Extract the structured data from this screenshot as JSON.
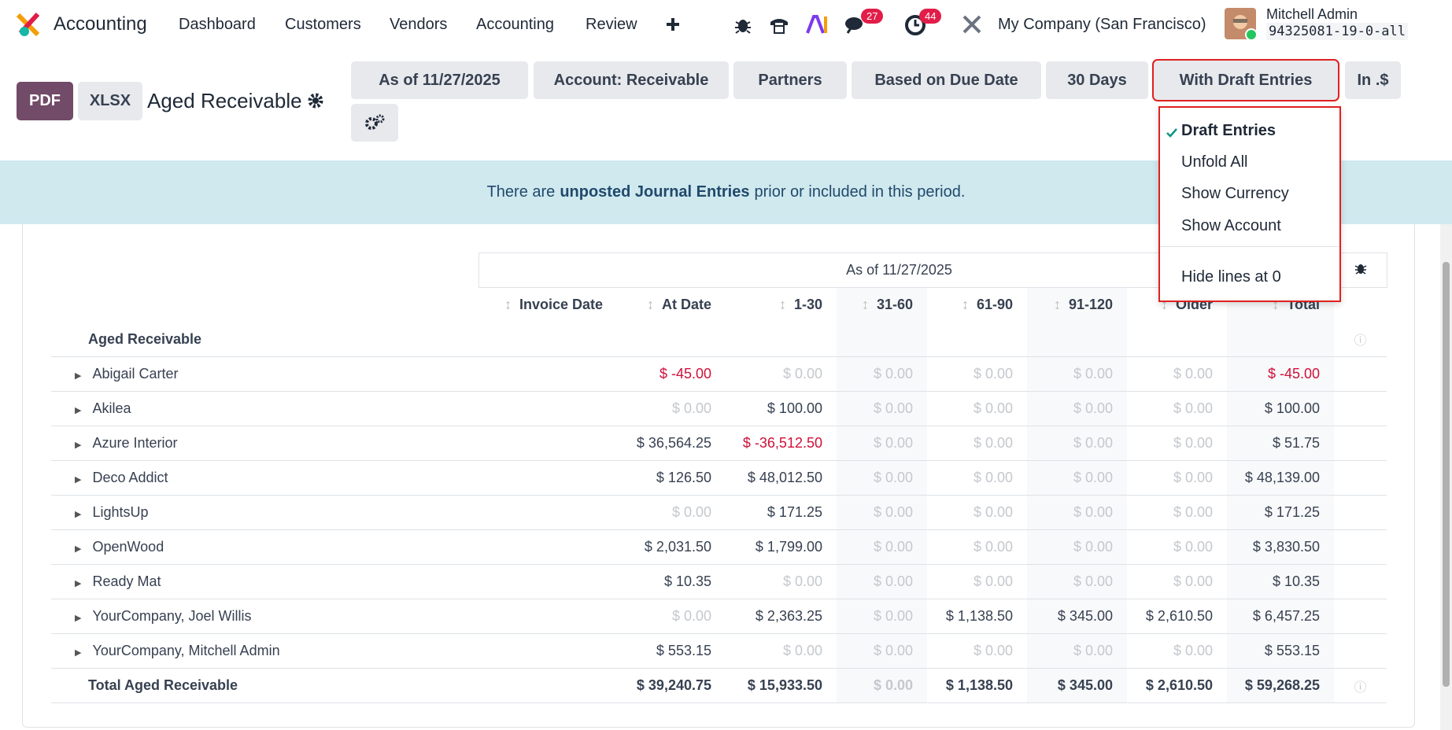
{
  "navbar": {
    "app": "Accounting",
    "menu": [
      "Dashboard",
      "Customers",
      "Vendors",
      "Accounting",
      "Review"
    ],
    "badges": [
      "27",
      "44"
    ],
    "company": "My Company (San Francisco)",
    "user": "Mitchell Admin",
    "db": "94325081-19-0-all"
  },
  "control_panel": {
    "buttons": [
      "PDF",
      "XLSX"
    ],
    "title": "Aged Receivable",
    "filters": [
      "As of 11/27/2025",
      "Account: Receivable",
      "Partners",
      "Based on Due Date",
      "30 Days",
      "With Draft Entries",
      "In .$"
    ]
  },
  "dropdown": {
    "items": [
      "Draft Entries",
      "Unfold All",
      "Show Currency",
      "Show Account"
    ],
    "extra": "Hide lines at 0"
  },
  "alert": {
    "before": "There are",
    "bold": "unposted Journal Entries",
    "after": "prior or included in this period."
  },
  "table": {
    "period": "As of 11/27/2025",
    "columns": [
      "Invoice Date",
      "At Date",
      "1-30",
      "31-60",
      "61-90",
      "91-120",
      "Older",
      "Total"
    ],
    "section": "Aged Receivable",
    "rows": [
      {
        "name": "Abigail Carter",
        "cells": [
          "$ -45.00",
          "$ 0.00",
          "$ 0.00",
          "$ 0.00",
          "$ 0.00",
          "$ 0.00",
          "$ -45.00"
        ]
      },
      {
        "name": "Akilea",
        "cells": [
          "$ 0.00",
          "$ 100.00",
          "$ 0.00",
          "$ 0.00",
          "$ 0.00",
          "$ 0.00",
          "$ 100.00"
        ]
      },
      {
        "name": "Azure Interior",
        "cells": [
          "$ 36,564.25",
          "$ -36,512.50",
          "$ 0.00",
          "$ 0.00",
          "$ 0.00",
          "$ 0.00",
          "$ 51.75"
        ]
      },
      {
        "name": "Deco Addict",
        "cells": [
          "$ 126.50",
          "$ 48,012.50",
          "$ 0.00",
          "$ 0.00",
          "$ 0.00",
          "$ 0.00",
          "$ 48,139.00"
        ]
      },
      {
        "name": "LightsUp",
        "cells": [
          "$ 0.00",
          "$ 171.25",
          "$ 0.00",
          "$ 0.00",
          "$ 0.00",
          "$ 0.00",
          "$ 171.25"
        ]
      },
      {
        "name": "OpenWood",
        "cells": [
          "$ 2,031.50",
          "$ 1,799.00",
          "$ 0.00",
          "$ 0.00",
          "$ 0.00",
          "$ 0.00",
          "$ 3,830.50"
        ]
      },
      {
        "name": "Ready Mat",
        "cells": [
          "$ 10.35",
          "$ 0.00",
          "$ 0.00",
          "$ 0.00",
          "$ 0.00",
          "$ 0.00",
          "$ 10.35"
        ]
      },
      {
        "name": "YourCompany, Joel Willis",
        "cells": [
          "$ 0.00",
          "$ 2,363.25",
          "$ 0.00",
          "$ 1,138.50",
          "$ 345.00",
          "$ 2,610.50",
          "$ 6,457.25"
        ]
      },
      {
        "name": "YourCompany, Mitchell Admin",
        "cells": [
          "$ 553.15",
          "$ 0.00",
          "$ 0.00",
          "$ 0.00",
          "$ 0.00",
          "$ 0.00",
          "$ 553.15"
        ]
      }
    ],
    "total": {
      "name": "Total Aged Receivable",
      "cells": [
        "$ 39,240.75",
        "$ 15,933.50",
        "$ 0.00",
        "$ 1,138.50",
        "$ 345.00",
        "$ 2,610.50",
        "$ 59,268.25"
      ]
    }
  }
}
